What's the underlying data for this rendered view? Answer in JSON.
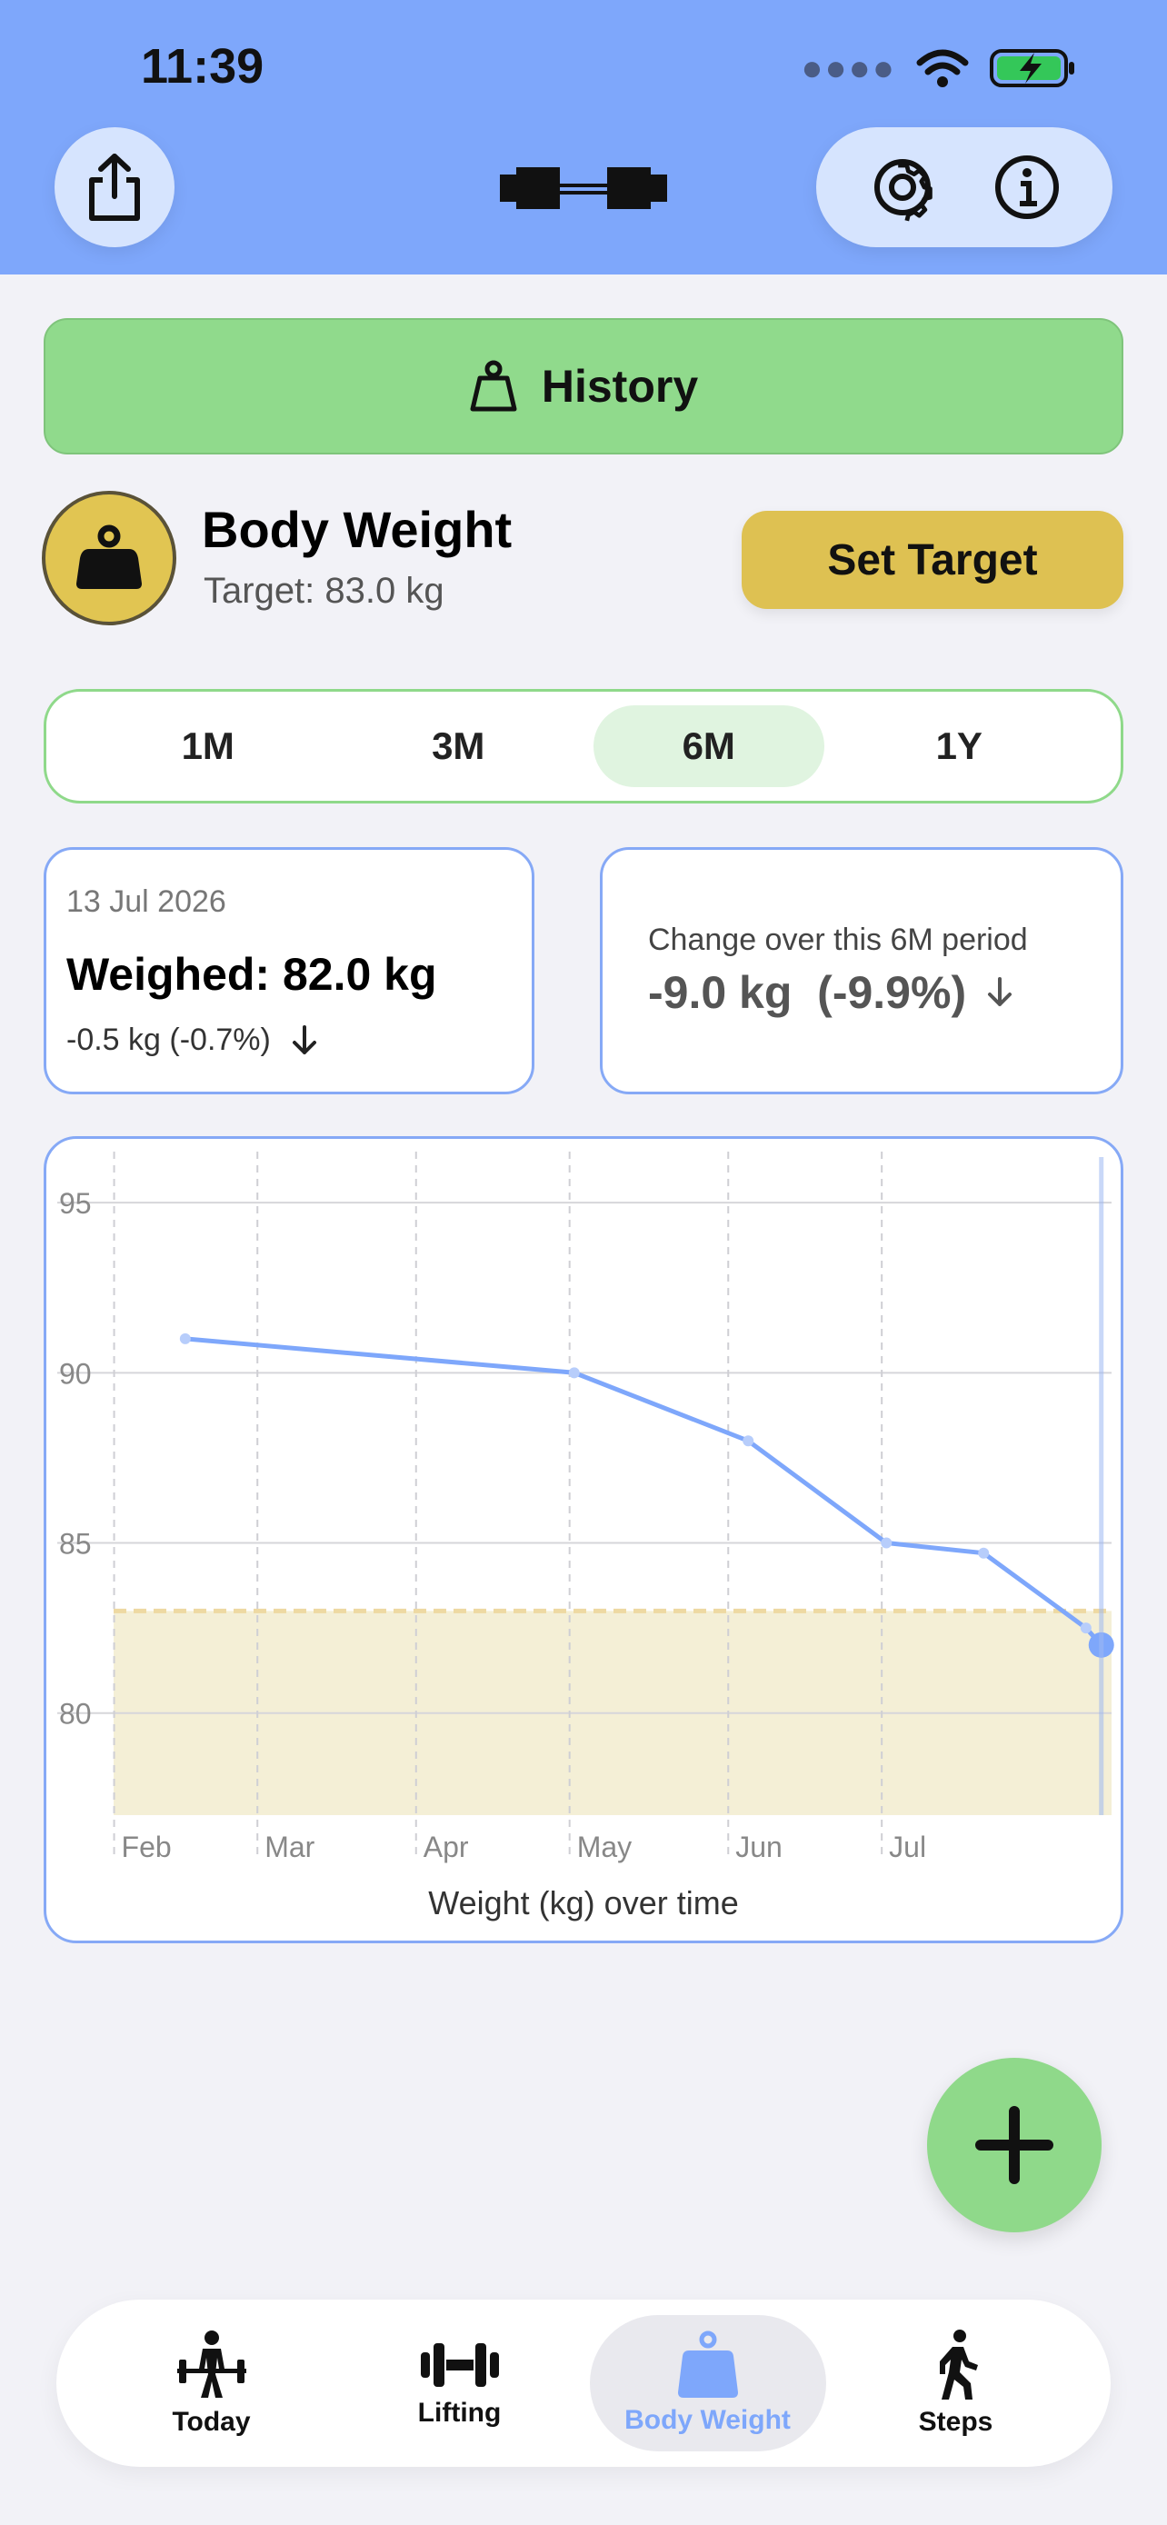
{
  "status_bar": {
    "time": "11:39",
    "icons": [
      "signal-icon",
      "wifi-icon",
      "battery-charging-icon"
    ]
  },
  "header": {
    "share_icon": "share-icon",
    "logo_icon": "barbell-icon",
    "settings_icon": "gear-icon",
    "info_icon": "info-icon"
  },
  "history": {
    "label": "History",
    "icon": "scale-weight-icon"
  },
  "body_weight": {
    "title": "Body Weight",
    "target": "Target: 83.0 kg",
    "set_target_label": "Set Target"
  },
  "segment": {
    "items": [
      "1M",
      "3M",
      "6M",
      "1Y"
    ],
    "selected": "6M"
  },
  "latest_card": {
    "date": "13 Jul 2026",
    "weighed": "Weighed: 82.0 kg",
    "delta": "-0.5 kg (-0.7%)"
  },
  "change_card": {
    "label": "Change over this 6M period",
    "value": "-9.0 kg  (-9.9%)"
  },
  "chart_data": {
    "type": "line",
    "title": "Weight (kg) over time",
    "xlabel": "",
    "ylabel": "",
    "x_ticks": [
      "Feb",
      "Mar",
      "Apr",
      "May",
      "Jun",
      "Jul"
    ],
    "y_ticks": [
      80,
      85,
      90,
      95
    ],
    "ylim": [
      77,
      96.5
    ],
    "target": 83.0,
    "grid": true,
    "series": [
      {
        "points": [
          {
            "x": "2026-01-15",
            "y": 91.0
          },
          {
            "x": "2026-04-01",
            "y": 90.0
          },
          {
            "x": "2026-05-05",
            "y": 88.0
          },
          {
            "x": "2026-06-01",
            "y": 85.0
          },
          {
            "x": "2026-06-20",
            "y": 84.7
          },
          {
            "x": "2026-07-10",
            "y": 82.5
          },
          {
            "x": "2026-07-13",
            "y": 82.0
          }
        ]
      }
    ],
    "colors": {
      "line": "#7EA7FB",
      "target_band": "#F4EFD6",
      "target_line": "#EED9A2"
    }
  },
  "fab": {
    "icon": "plus-icon"
  },
  "tabbar": {
    "items": [
      {
        "label": "Today",
        "icon": "deadlift-person-icon"
      },
      {
        "label": "Lifting",
        "icon": "dumbbell-icon"
      },
      {
        "label": "Body Weight",
        "icon": "scale-weight-icon"
      },
      {
        "label": "Steps",
        "icon": "walking-person-icon"
      }
    ],
    "selected": "Body Weight"
  },
  "colors": {
    "header": "#7EA7FB",
    "accent_green": "#90DA8C",
    "accent_yellow": "#DEC152",
    "border_blue": "#86A9F6"
  }
}
